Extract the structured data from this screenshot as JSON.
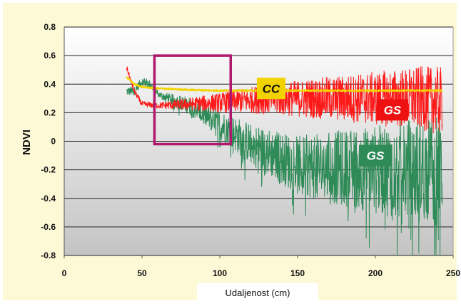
{
  "chart_data": {
    "type": "line",
    "title": "",
    "xlabel": "Udaljenost (cm)",
    "ylabel": "NDVI",
    "xlim": [
      0,
      250
    ],
    "ylim": [
      -0.8,
      0.8
    ],
    "x_ticks": [
      "0",
      "50",
      "100",
      "150",
      "200",
      "250"
    ],
    "y_ticks": [
      "0.8",
      "0.6",
      "0.4",
      "0.2",
      "0",
      "-0.2",
      "-0.4",
      "-0.6",
      "-0.8"
    ],
    "grid": true,
    "series": [
      {
        "name": "CC",
        "color": "#f2d300",
        "x": [
          40,
          45,
          50,
          60,
          80,
          100,
          150,
          200,
          243
        ],
        "values": [
          0.45,
          0.4,
          0.38,
          0.37,
          0.36,
          0.355,
          0.355,
          0.355,
          0.355
        ]
      },
      {
        "name": "GS",
        "color": "#ff1a1a",
        "x": [
          40,
          45,
          50,
          60,
          80,
          100,
          120,
          150,
          200,
          230,
          243
        ],
        "values": [
          0.52,
          0.35,
          0.26,
          0.25,
          0.26,
          0.27,
          0.29,
          0.3,
          0.3,
          0.3,
          0.28
        ]
      },
      {
        "name": "GS",
        "color": "#2e8b57",
        "x": [
          40,
          45,
          50,
          55,
          60,
          80,
          100,
          120,
          150,
          200,
          243
        ],
        "values": [
          0.35,
          0.35,
          0.42,
          0.4,
          0.33,
          0.25,
          0.12,
          -0.02,
          -0.17,
          -0.2,
          -0.2
        ]
      }
    ],
    "annotations": [
      {
        "type": "rectangle",
        "color": "#b0186e",
        "x": [
          58,
          107
        ],
        "y": [
          -0.02,
          0.6
        ]
      }
    ]
  }
}
